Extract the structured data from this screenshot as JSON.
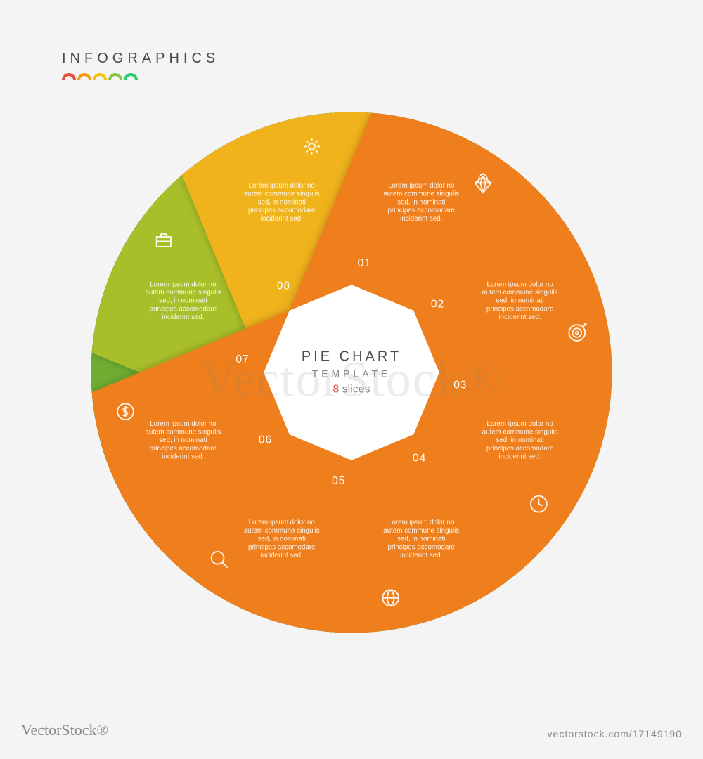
{
  "header": {
    "title": "INFOGRAPHICS",
    "arc_colors": [
      "#e74c3c",
      "#f39c12",
      "#f1c40f",
      "#8bc34a",
      "#2ecc71"
    ]
  },
  "center": {
    "line1": "PIE CHART",
    "line2": "TEMPLATE",
    "count": "8",
    "count_color": "#e74c3c",
    "slices_word": "slices",
    "bg_color": "#ffffff"
  },
  "chart": {
    "type": "aperture-pie",
    "slice_count": 8,
    "outer_radius": 380,
    "inner_radius": 128,
    "background": "#f4f4f4",
    "placeholder_text": "Lorem ipsum dolor no autem commune singulis sed, in nominati principes accomodare inciderint sed.",
    "slices": [
      {
        "num": "01",
        "color_light": "#e22f2c",
        "color_dark": "#c72725",
        "icon": "diamond"
      },
      {
        "num": "02",
        "color_light": "#1e88b3",
        "color_dark": "#16708f",
        "icon": "target"
      },
      {
        "num": "03",
        "color_light": "#1a9e8f",
        "color_dark": "#15897b",
        "icon": "clock"
      },
      {
        "num": "04",
        "color_light": "#3f9e52",
        "color_dark": "#348645",
        "icon": "globe"
      },
      {
        "num": "05",
        "color_light": "#6fae33",
        "color_dark": "#5f972b",
        "icon": "magnify"
      },
      {
        "num": "06",
        "color_light": "#a9bf2c",
        "color_dark": "#98ab25",
        "icon": "dollar"
      },
      {
        "num": "07",
        "color_light": "#f1b31c",
        "color_dark": "#dca018",
        "icon": "briefcase"
      },
      {
        "num": "08",
        "color_light": "#ef7f1a",
        "color_dark": "#da7115",
        "icon": "gear"
      }
    ]
  },
  "watermark": "VectorStock®",
  "footer": {
    "left": "VectorStock®",
    "right": "vectorstock.com/17149190"
  }
}
